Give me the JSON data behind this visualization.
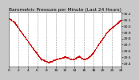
{
  "title": "Barometric Pressure per Minute (Last 24 Hours)",
  "bg_color": "#c8c8c8",
  "plot_bg_color": "#ffffff",
  "line_color": "#cc0000",
  "marker_size": 1.2,
  "line_width": 0.0,
  "grid_color": "#888888",
  "grid_style": "--",
  "ymin": 29.35,
  "ymax": 30.22,
  "yticks": [
    29.4,
    29.5,
    29.6,
    29.7,
    29.8,
    29.9,
    30.0,
    30.1,
    30.2
  ],
  "ytick_labels": [
    "29.4",
    "29.5",
    "29.6",
    "29.7",
    "29.8",
    "29.9",
    "30.0",
    "30.1",
    "30.2"
  ],
  "title_fontsize": 4.2,
  "tick_fontsize": 3.2,
  "key_x": [
    0,
    5,
    18,
    28,
    35,
    42,
    50,
    55,
    58,
    62,
    65,
    68,
    72,
    75,
    80,
    88,
    100
  ],
  "key_y": [
    30.12,
    30.05,
    29.72,
    29.48,
    29.42,
    29.47,
    29.51,
    29.47,
    29.47,
    29.52,
    29.48,
    29.47,
    29.52,
    29.58,
    29.72,
    29.92,
    30.1
  ],
  "num_segments": 100,
  "num_xticks": 13,
  "xtick_labels": [
    "0",
    "2",
    "4",
    "6",
    "8",
    "10",
    "12",
    "14",
    "16",
    "18",
    "20",
    "22",
    "24"
  ]
}
